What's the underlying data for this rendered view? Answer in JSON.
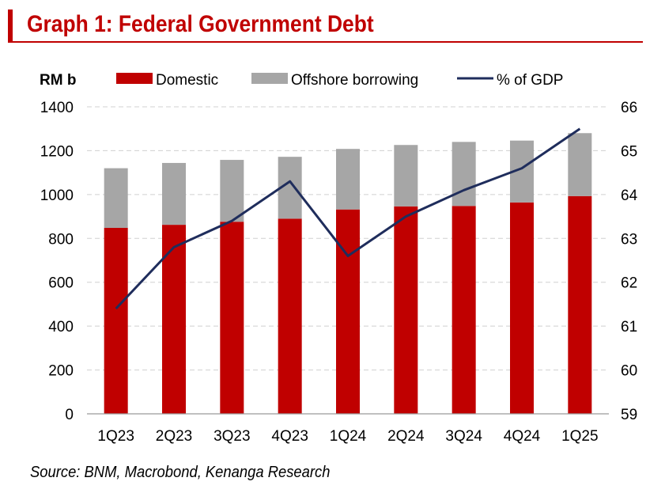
{
  "title": "Graph 1: Federal Government Debt",
  "source": "Source: BNM, Macrobond, Kenanga Research",
  "chart_data": {
    "type": "bar",
    "stacked": true,
    "categories": [
      "1Q23",
      "2Q23",
      "3Q23",
      "4Q23",
      "1Q24",
      "2Q24",
      "3Q24",
      "4Q24",
      "1Q25"
    ],
    "left_axis_label": "RM b",
    "ylim": [
      0,
      1400
    ],
    "yticks": [
      0,
      200,
      400,
      600,
      800,
      1000,
      1200,
      1400
    ],
    "y2lim": [
      59,
      66
    ],
    "y2ticks": [
      59,
      60,
      61,
      62,
      63,
      64,
      65,
      66
    ],
    "grid": true,
    "legend_position": "top",
    "series": [
      {
        "name": "Domestic",
        "type": "bar",
        "axis": "left",
        "color": "#c00000",
        "values": [
          848,
          862,
          876,
          890,
          932,
          946,
          948,
          964,
          993
        ]
      },
      {
        "name": "Offshore borrowing",
        "type": "bar",
        "axis": "left",
        "color": "#a6a6a6",
        "values": [
          272,
          282,
          282,
          282,
          276,
          280,
          292,
          282,
          287
        ]
      },
      {
        "name": "% of GDP",
        "type": "line",
        "axis": "right",
        "color": "#1f2d5c",
        "values": [
          61.4,
          62.8,
          63.4,
          64.3,
          62.6,
          63.5,
          64.1,
          64.6,
          65.5
        ]
      }
    ]
  }
}
